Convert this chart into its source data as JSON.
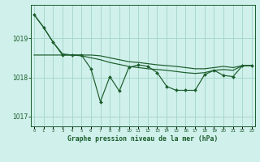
{
  "xlabel": "Graphe pression niveau de la mer (hPa)",
  "bg_color": "#cff0eb",
  "grid_color": "#a8d8cc",
  "line_color": "#1a5c2a",
  "x": [
    0,
    1,
    2,
    3,
    4,
    5,
    6,
    7,
    8,
    9,
    10,
    11,
    12,
    13,
    14,
    15,
    16,
    17,
    18,
    19,
    20,
    21,
    22,
    23
  ],
  "y_detail": [
    1019.6,
    1019.28,
    1018.9,
    1018.57,
    1018.57,
    1018.57,
    1018.22,
    1017.38,
    1018.02,
    1017.65,
    1018.25,
    1018.32,
    1018.28,
    1018.12,
    1017.77,
    1017.67,
    1017.67,
    1017.67,
    1018.07,
    1018.18,
    1018.05,
    1018.02,
    1018.3,
    1018.3
  ],
  "y_smooth_high": [
    1019.6,
    1019.28,
    1018.9,
    1018.6,
    1018.57,
    1018.55,
    1018.5,
    1018.45,
    1018.38,
    1018.33,
    1018.28,
    1018.25,
    1018.22,
    1018.2,
    1018.18,
    1018.15,
    1018.12,
    1018.1,
    1018.12,
    1018.18,
    1018.2,
    1018.18,
    1018.3,
    1018.3
  ],
  "y_smooth_flat": [
    1018.57,
    1018.57,
    1018.57,
    1018.57,
    1018.57,
    1018.57,
    1018.57,
    1018.55,
    1018.5,
    1018.45,
    1018.4,
    1018.38,
    1018.35,
    1018.32,
    1018.3,
    1018.28,
    1018.25,
    1018.22,
    1018.22,
    1018.25,
    1018.28,
    1018.25,
    1018.3,
    1018.3
  ],
  "yticks": [
    1017,
    1018,
    1019
  ],
  "ylim": [
    1016.75,
    1019.85
  ],
  "xlim": [
    -0.3,
    23.3
  ],
  "figsize": [
    3.2,
    2.0
  ],
  "dpi": 100
}
